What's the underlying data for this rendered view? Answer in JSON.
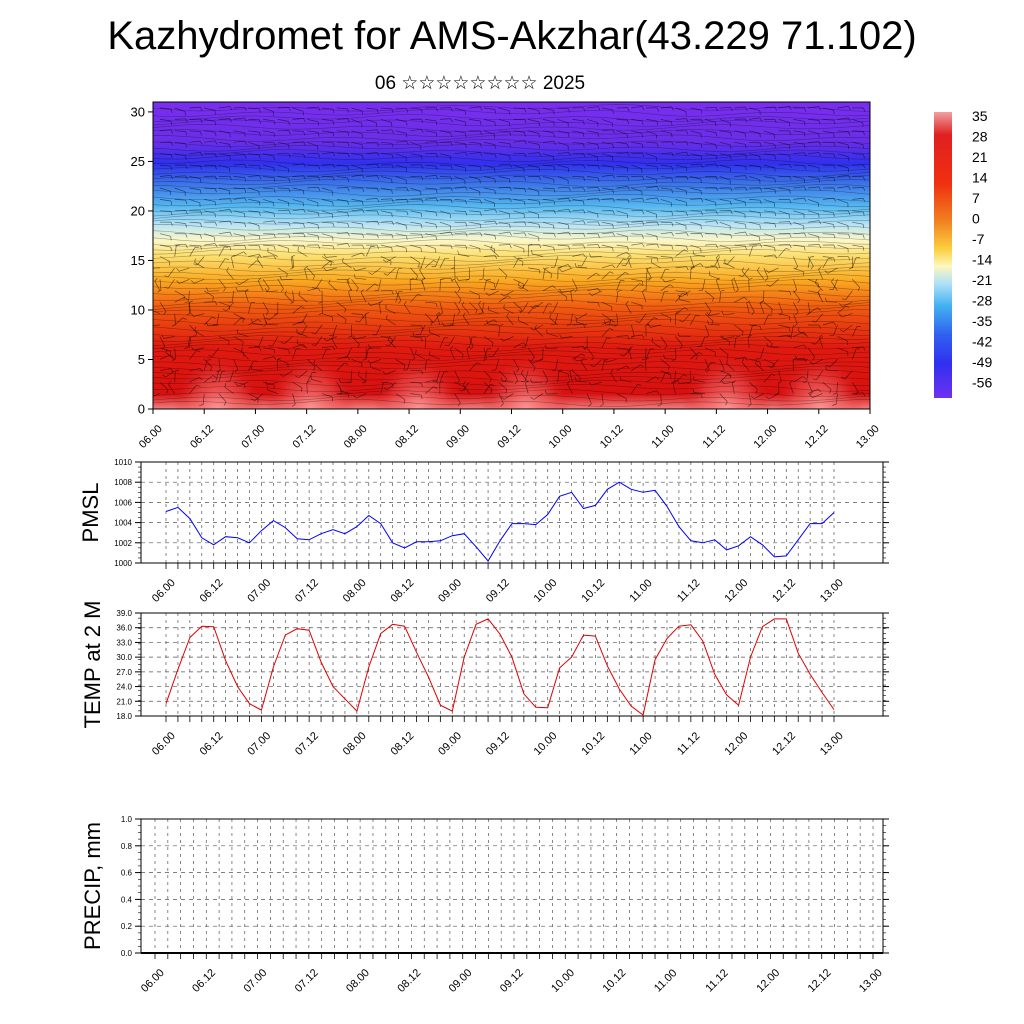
{
  "title": "Kazhydromet for AMS-Akzhar(43.229 71.102)",
  "subtitle": "06 ☆☆☆☆☆☆☆☆ 2025",
  "colors": {
    "pmsl_line": "#0000ff",
    "temp_line": "#e00000",
    "frame": "#000000",
    "grid": "#555555"
  },
  "chart_data": [
    {
      "type": "heatmap",
      "name": "upper-air-section",
      "title": "",
      "xlabel": "",
      "ylabel": "",
      "x_ticks": [
        "06.00",
        "06.12",
        "07.00",
        "07.12",
        "08.00",
        "08.12",
        "09.00",
        "09.12",
        "10.00",
        "10.12",
        "11.00",
        "11.12",
        "12.00",
        "12.12",
        "13.00"
      ],
      "y_ticks": [
        "0",
        "5",
        "10",
        "15",
        "20",
        "25",
        "30"
      ],
      "ylim": [
        0,
        31
      ],
      "overlay": "wind-barbs",
      "colorbar": {
        "labels": [
          "35",
          "28",
          "21",
          "14",
          "7",
          "0",
          "-7",
          "-14",
          "-21",
          "-28",
          "-35",
          "-42",
          "-49",
          "-56"
        ]
      }
    },
    {
      "type": "line",
      "name": "pmsl",
      "title": "",
      "xlabel": "",
      "ylabel": "PMSL",
      "ylim": [
        1000,
        1010
      ],
      "y_ticks": [
        "1000",
        "1002",
        "1004",
        "1006",
        "1008",
        "1010"
      ],
      "x_ticks": [
        "06.00",
        "06.12",
        "07.00",
        "07.12",
        "08.00",
        "08.12",
        "09.00",
        "09.12",
        "10.00",
        "10.12",
        "11.00",
        "11.12",
        "12.00",
        "12.12",
        "13.00"
      ],
      "x_step_hours": 3,
      "values": [
        1005.1,
        1005.5,
        1004.4,
        1002.5,
        1001.8,
        1002.6,
        1002.5,
        1002.0,
        1003.2,
        1004.2,
        1003.5,
        1002.4,
        1002.3,
        1002.9,
        1003.3,
        1002.9,
        1003.6,
        1004.7,
        1003.9,
        1002.0,
        1001.5,
        1002.1,
        1002.1,
        1002.2,
        1002.7,
        1002.9,
        1001.6,
        1000.2,
        1002.2,
        1003.9,
        1003.9,
        1003.8,
        1004.8,
        1006.6,
        1007.0,
        1005.4,
        1005.7,
        1007.3,
        1008.0,
        1007.3,
        1007.0,
        1007.2,
        1005.6,
        1003.6,
        1002.2,
        1002.0,
        1002.3,
        1001.3,
        1001.7,
        1002.6,
        1001.8,
        1000.6,
        1000.7,
        1002.3,
        1003.9,
        1003.9,
        1005.0
      ]
    },
    {
      "type": "line",
      "name": "temp-2m",
      "title": "",
      "xlabel": "",
      "ylabel": "TEMP at 2 M",
      "ylim": [
        18,
        39
      ],
      "y_ticks": [
        "18.0",
        "21.0",
        "24.0",
        "27.0",
        "30.0",
        "33.0",
        "36.0",
        "39.0"
      ],
      "x_ticks": [
        "06.00",
        "06.12",
        "07.00",
        "07.12",
        "08.00",
        "08.12",
        "09.00",
        "09.12",
        "10.00",
        "10.12",
        "11.00",
        "11.12",
        "12.00",
        "12.12",
        "13.00"
      ],
      "x_step_hours": 3,
      "values": [
        20.5,
        27.5,
        34.0,
        36.3,
        36.2,
        29.3,
        24.0,
        20.5,
        19.2,
        28.0,
        34.5,
        35.8,
        35.5,
        29.0,
        24.0,
        21.5,
        19.0,
        28.0,
        34.8,
        36.7,
        36.3,
        31.0,
        26.0,
        20.2,
        19.0,
        30.0,
        36.7,
        37.8,
        34.7,
        30.0,
        22.5,
        19.8,
        19.7,
        27.8,
        30.0,
        34.5,
        34.3,
        28.2,
        23.5,
        20.0,
        18.2,
        29.5,
        33.8,
        36.3,
        36.6,
        33.3,
        26.5,
        22.3,
        20.2,
        30.0,
        36.2,
        37.8,
        37.8,
        30.8,
        26.5,
        22.8,
        19.3
      ]
    },
    {
      "type": "line",
      "name": "precip",
      "title": "",
      "xlabel": "",
      "ylabel": "PRECIP, mm",
      "ylim": [
        0,
        1
      ],
      "y_ticks": [
        "0.0",
        "0.2",
        "0.4",
        "0.6",
        "0.8",
        "1.0"
      ],
      "x_ticks": [
        "06.00",
        "06.12",
        "07.00",
        "07.12",
        "08.00",
        "08.12",
        "09.00",
        "09.12",
        "10.00",
        "10.12",
        "11.00",
        "11.12",
        "12.00",
        "12.12",
        "13.00"
      ],
      "x_step_hours": 3,
      "values": []
    }
  ]
}
